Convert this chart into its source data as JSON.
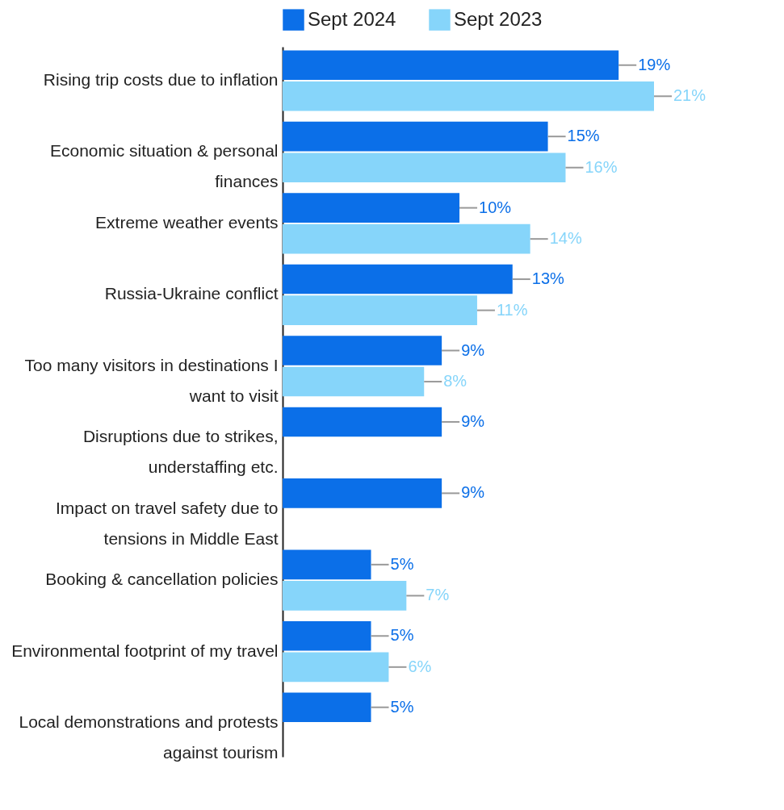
{
  "chart_data": {
    "type": "bar",
    "orientation": "horizontal",
    "legend": "top",
    "categories": [
      "Rising trip costs due to inflation",
      "Economic situation & personal finances",
      "Extreme weather events",
      "Russia-Ukraine conflict",
      "Too many visitors in destinations I want to visit",
      "Disruptions due to strikes, understaffing etc.",
      "Impact on travel safety due to tensions in Middle East",
      "Booking & cancellation policies",
      "Environmental footprint of my travel",
      "Local demonstrations and protests against tourism"
    ],
    "series": [
      {
        "name": "Sept 2024",
        "color": "#0b6fe8",
        "values": [
          19,
          15,
          10,
          13,
          9,
          9,
          9,
          5,
          5,
          5
        ],
        "value_labels": [
          "19%",
          "15%",
          "10%",
          "13%",
          "9%",
          "9%",
          "9%",
          "5%",
          "5%",
          "5%"
        ]
      },
      {
        "name": "Sept 2023",
        "color": "#86d5fa",
        "values": [
          21,
          16,
          14,
          11,
          8,
          null,
          null,
          7,
          6,
          null
        ],
        "value_labels": [
          "21%",
          "16%",
          "14%",
          "11%",
          "8%",
          null,
          null,
          "7%",
          "6%",
          null
        ]
      }
    ]
  }
}
